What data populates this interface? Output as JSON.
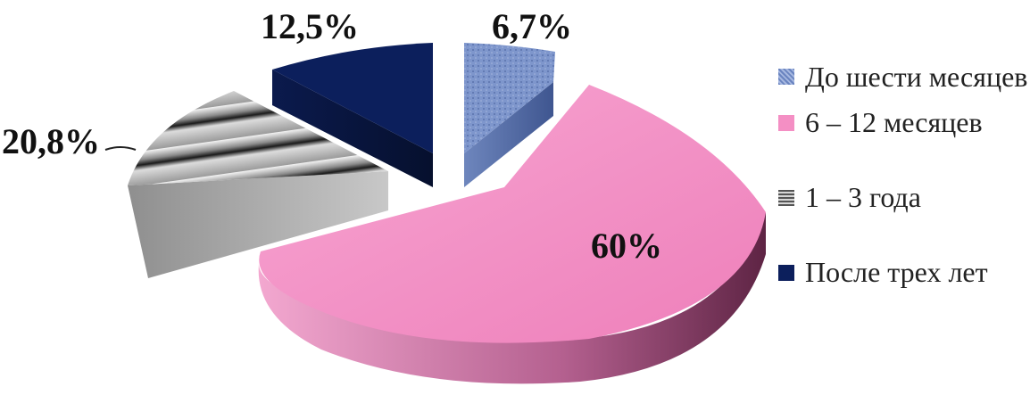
{
  "chart_data": {
    "type": "pie",
    "series": [
      {
        "name": "До шести месяцев",
        "value": 6.7,
        "label": "6,7%",
        "color": "#7b93c9",
        "pattern": "dotted"
      },
      {
        "name": "6 – 12 месяцев",
        "value": 60,
        "label": "60%",
        "color": "#f48fc4",
        "pattern": "solid"
      },
      {
        "name": "1 – 3 года",
        "value": 20.8,
        "label": "20,8%",
        "color": "#9a9a9a",
        "pattern": "horizontal-stripes"
      },
      {
        "name": "После трех лет",
        "value": 12.5,
        "label": "12,5%",
        "color": "#0c1f5c",
        "pattern": "solid"
      }
    ],
    "legend_position": "right",
    "exploded": true,
    "three_d": true
  }
}
